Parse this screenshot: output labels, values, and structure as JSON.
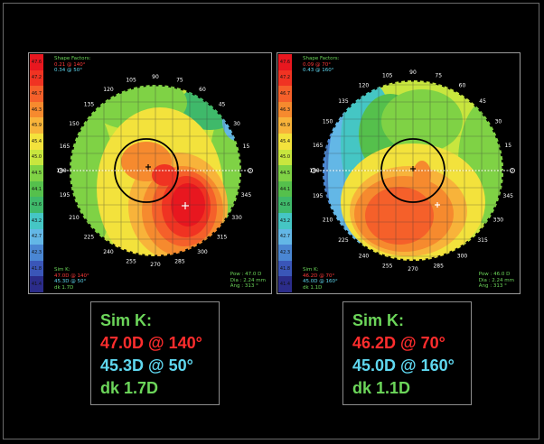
{
  "scale_levels": [
    "47.6",
    "47.2",
    "46.7",
    "46.3",
    "45.9",
    "45.4",
    "45.0",
    "44.5",
    "44.1",
    "43.6",
    "43.2",
    "42.7",
    "42.3",
    "41.8",
    "41.4"
  ],
  "scale_colors": [
    "#e8171f",
    "#f03322",
    "#f5602a",
    "#f68a2e",
    "#f8b33a",
    "#f3e23c",
    "#c8e63e",
    "#7fd245",
    "#55c04c",
    "#3fb96a",
    "#45c6c4",
    "#63b7e6",
    "#4a86d2",
    "#3a56b8",
    "#2b2c8a"
  ],
  "angle_labels": [
    "90",
    "105",
    "75",
    "120",
    "60",
    "135",
    "45",
    "150",
    "30",
    "165",
    "15",
    "180",
    "0",
    "195",
    "345",
    "210",
    "330",
    "225",
    "315",
    "240",
    "300",
    "255",
    "285",
    "270"
  ],
  "left_map": {
    "shape_factors": {
      "title": "Shape Factors:",
      "line1": "0.21 @ 140°",
      "line2": "0.34 @ 50°"
    },
    "mini_simk": {
      "title": "Sim K:",
      "line1": "47.0D @ 140°",
      "line2": "45.3D @ 50°",
      "line3": "dk 1.7D"
    },
    "info": {
      "pow": "Pow : 47.0 D",
      "dia": "Dia : 2.24 mm",
      "ang": "Ang : 313 °"
    }
  },
  "right_map": {
    "shape_factors": {
      "title": "Shape Factors:",
      "line1": "0.09 @ 70°",
      "line2": "0.43 @ 160°"
    },
    "mini_simk": {
      "title": "Sim K:",
      "line1": "46.2D @ 70°",
      "line2": "45.0D @ 160°",
      "line3": "dk 1.1D"
    },
    "info": {
      "pow": "Pow : 46.0 D",
      "dia": "Dia : 2.24 mm",
      "ang": "Ang : 313 °"
    }
  },
  "simk_left": {
    "title": "Sim K:",
    "steep": "47.0D @ 140°",
    "flat": "45.3D @ 50°",
    "dk": "dk 1.7D"
  },
  "simk_right": {
    "title": "Sim K:",
    "steep": "46.2D @ 70°",
    "flat": "45.0D @ 160°",
    "dk": "dk 1.1D"
  }
}
